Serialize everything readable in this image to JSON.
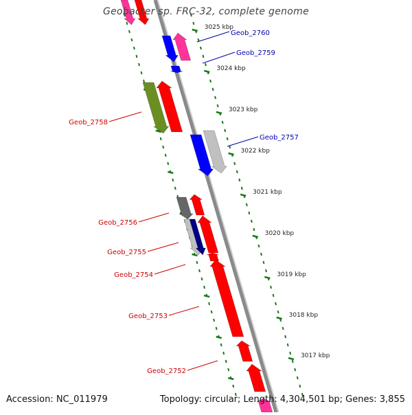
{
  "title": "Geobacter sp. FRC-32, complete genome",
  "footer": {
    "accession": "Accession: NC_011979",
    "summary": "Topology: circular; Length: 4,304,501 bp; Genes: 3,855"
  },
  "colors": {
    "backbone": "#8a8a8a",
    "tick": "#1a7a1a",
    "label_red": "#cc0000",
    "label_blue": "#0000aa",
    "red": "#ff0000",
    "blue": "#0000ff",
    "pink": "#ff3399",
    "olive": "#6b8e23",
    "gray": "#c0c0c0",
    "darkgray": "#666666",
    "navy": "#000080"
  },
  "kbp_ticks": [
    "3025 kbp",
    "3024 kbp",
    "3023 kbp",
    "3022 kbp",
    "3021 kbp",
    "3020 kbp",
    "3019 kbp",
    "3018 kbp",
    "3017 kbp"
  ],
  "genes": [
    {
      "label": "Geob_2760",
      "color": "label_blue"
    },
    {
      "label": "Geob_2759",
      "color": "label_blue"
    },
    {
      "label": "Geob_2758",
      "color": "label_red"
    },
    {
      "label": "Geob_2757",
      "color": "label_blue"
    },
    {
      "label": "Geob_2756",
      "color": "label_red"
    },
    {
      "label": "Geob_2755",
      "color": "label_red"
    },
    {
      "label": "Geob_2754",
      "color": "label_red"
    },
    {
      "label": "Geob_2753",
      "color": "label_red"
    },
    {
      "label": "Geob_2752",
      "color": "label_red"
    }
  ]
}
